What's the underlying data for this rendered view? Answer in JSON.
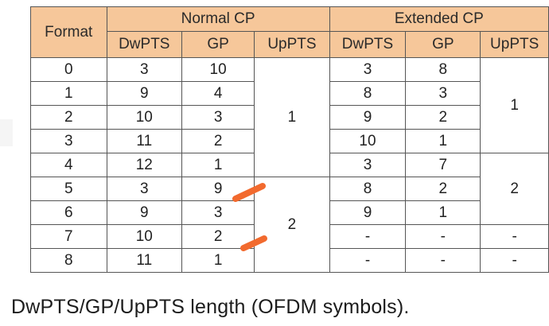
{
  "table": {
    "format_header": "Format",
    "group_normal": "Normal CP",
    "group_extended": "Extended CP",
    "sub_headers": [
      "DwPTS",
      "GP",
      "UpPTS",
      "DwPTS",
      "GP",
      "UpPTS"
    ],
    "rows": [
      {
        "format": "0",
        "n_dwpts": "3",
        "n_gp": "10",
        "e_dwpts": "3",
        "e_gp": "8"
      },
      {
        "format": "1",
        "n_dwpts": "9",
        "n_gp": "4",
        "e_dwpts": "8",
        "e_gp": "3"
      },
      {
        "format": "2",
        "n_dwpts": "10",
        "n_gp": "3",
        "e_dwpts": "9",
        "e_gp": "2"
      },
      {
        "format": "3",
        "n_dwpts": "11",
        "n_gp": "2",
        "e_dwpts": "10",
        "e_gp": "1"
      },
      {
        "format": "4",
        "n_dwpts": "12",
        "n_gp": "1",
        "e_dwpts": "3",
        "e_gp": "7"
      },
      {
        "format": "5",
        "n_dwpts": "3",
        "n_gp": "9",
        "e_dwpts": "8",
        "e_gp": "2"
      },
      {
        "format": "6",
        "n_dwpts": "9",
        "n_gp": "3",
        "e_dwpts": "9",
        "e_gp": "1"
      },
      {
        "format": "7",
        "n_dwpts": "10",
        "n_gp": "2",
        "e_dwpts": "-",
        "e_gp": "-"
      },
      {
        "format": "8",
        "n_dwpts": "11",
        "n_gp": "1",
        "e_dwpts": "-",
        "e_gp": "-"
      }
    ],
    "normal_uppts_group1": "1",
    "normal_uppts_group2": "2",
    "extended_uppts_group1": "1",
    "extended_uppts_group2": "2",
    "extended_uppts_row7": "-",
    "extended_uppts_row8": "-"
  },
  "caption": "DwPTS/GP/UpPTS length (OFDM symbols).",
  "colors": {
    "header_fill": "#f6c79a",
    "annotation_mark": "#f26a2e"
  }
}
